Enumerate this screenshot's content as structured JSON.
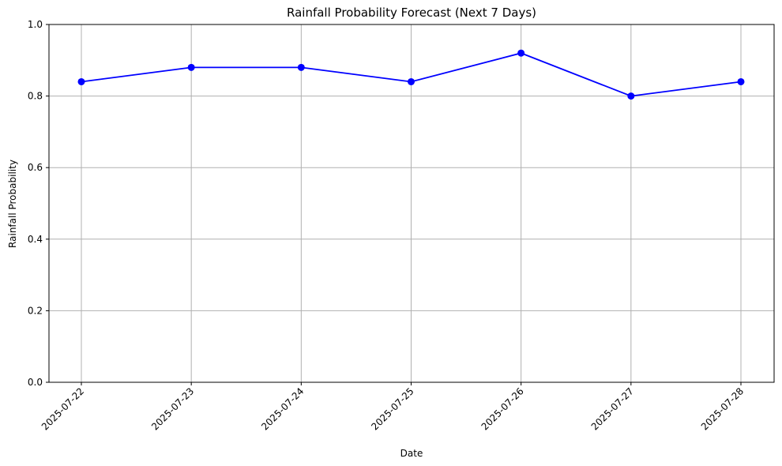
{
  "chart_data": {
    "type": "line",
    "title": "Rainfall Probability Forecast (Next 7 Days)",
    "xlabel": "Date",
    "ylabel": "Rainfall Probability",
    "categories": [
      "2025-07-22",
      "2025-07-23",
      "2025-07-24",
      "2025-07-25",
      "2025-07-26",
      "2025-07-27",
      "2025-07-28"
    ],
    "values": [
      0.84,
      0.88,
      0.88,
      0.84,
      0.92,
      0.8,
      0.84
    ],
    "ylim": [
      0,
      1
    ],
    "yticks": [
      "0.0",
      "0.2",
      "0.4",
      "0.6",
      "0.8",
      "1.0"
    ],
    "grid": true,
    "line_color": "#0000ff",
    "marker": "circle",
    "grid_color": "#b0b0b0"
  }
}
